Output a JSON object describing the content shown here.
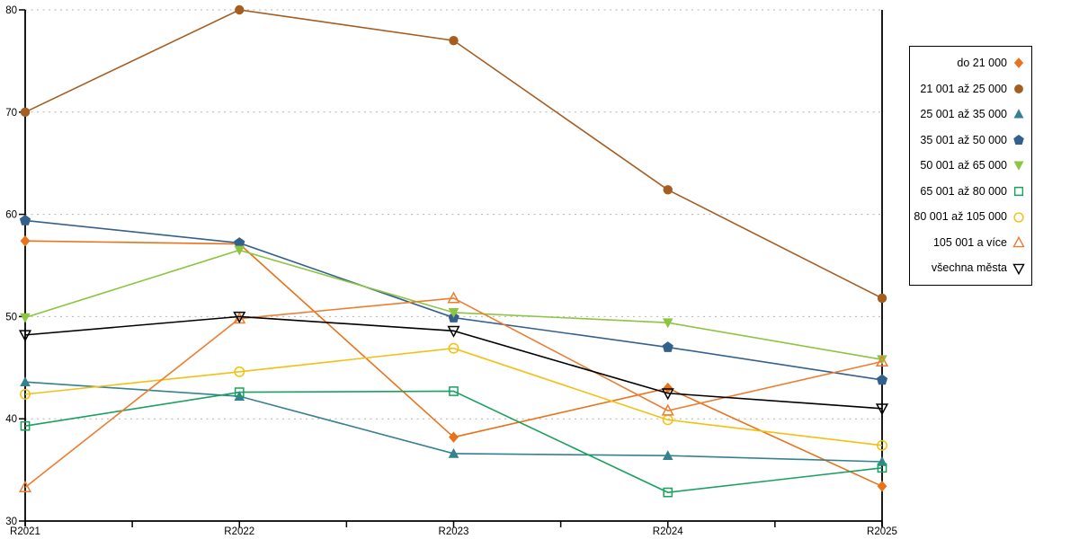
{
  "chart_data": {
    "type": "line",
    "title": "",
    "xlabel": "",
    "ylabel": "",
    "x_categories": [
      "R2021",
      "R2022",
      "R2023",
      "R2024",
      "R2025"
    ],
    "ylim": [
      30,
      80
    ],
    "y_ticks": [
      "30",
      "40",
      "50",
      "60",
      "70",
      "80"
    ],
    "grid": "horizontal-dashed",
    "grid_color": "#b3b3b3",
    "axis_color": "#000000",
    "legend_position": "right",
    "series": [
      {
        "name": "do 21 000",
        "color": "#E8731A",
        "marker": "diamond",
        "fill": "solid",
        "values": [
          57.4,
          57.1,
          38.2,
          43.0,
          33.4
        ]
      },
      {
        "name": "21 001 až 25 000",
        "color": "#A55D20",
        "marker": "circle",
        "fill": "solid",
        "values": [
          70.0,
          80.0,
          77.0,
          62.4,
          51.8
        ]
      },
      {
        "name": "25 001 až 35 000",
        "color": "#36818F",
        "marker": "triangle-up",
        "fill": "solid",
        "values": [
          43.6,
          42.2,
          36.6,
          36.4,
          35.8
        ]
      },
      {
        "name": "35 001 až 50 000",
        "color": "#34608D",
        "marker": "pentagon",
        "fill": "solid",
        "values": [
          59.4,
          57.2,
          49.9,
          47.0,
          43.8
        ]
      },
      {
        "name": "50 001 až 65 000",
        "color": "#8CC540",
        "marker": "triangle-down",
        "fill": "solid",
        "values": [
          49.9,
          56.5,
          50.4,
          49.4,
          45.8
        ]
      },
      {
        "name": "65 001 až 80 000",
        "color": "#19A15E",
        "marker": "square",
        "fill": "open",
        "values": [
          39.3,
          42.6,
          42.7,
          32.8,
          35.2
        ]
      },
      {
        "name": "80 001 až 105 000",
        "color": "#F2C011",
        "marker": "circle",
        "fill": "open",
        "values": [
          42.4,
          44.6,
          46.9,
          39.9,
          37.4
        ]
      },
      {
        "name": "105 001 a více",
        "color": "#ED7D31",
        "marker": "triangle-up",
        "fill": "open",
        "values": [
          33.3,
          49.8,
          51.8,
          40.8,
          45.6
        ]
      },
      {
        "name": "všechna města",
        "color": "#000000",
        "marker": "triangle-down",
        "fill": "open",
        "values": [
          48.2,
          50.0,
          48.6,
          42.5,
          41.0
        ]
      }
    ]
  }
}
